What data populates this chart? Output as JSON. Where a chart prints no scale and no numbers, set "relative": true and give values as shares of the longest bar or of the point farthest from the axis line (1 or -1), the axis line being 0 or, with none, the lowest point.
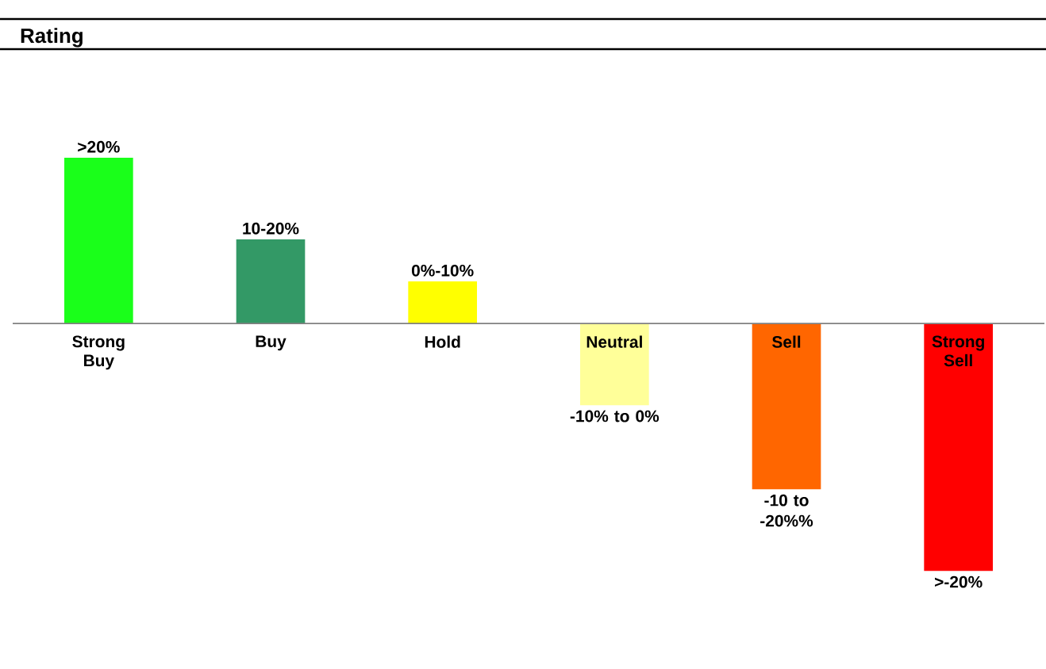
{
  "chart_data": {
    "type": "bar",
    "title": "Rating",
    "relative": true,
    "categories": [
      "Strong Buy",
      "Buy",
      "Hold",
      "Neutral",
      "Sell",
      "Strong Sell"
    ],
    "values": [
      0.67,
      0.34,
      0.17,
      -0.33,
      -0.67,
      -1
    ],
    "colors": [
      "#1aff1a",
      "#339966",
      "#ffff00",
      "#ffff99",
      "#ff6600",
      "#ff0000"
    ],
    "annotations": [
      ">20%",
      "10-20%",
      "0%-10%",
      "-10% to 0%",
      "-10 to -20%%",
      ">-20%"
    ]
  }
}
